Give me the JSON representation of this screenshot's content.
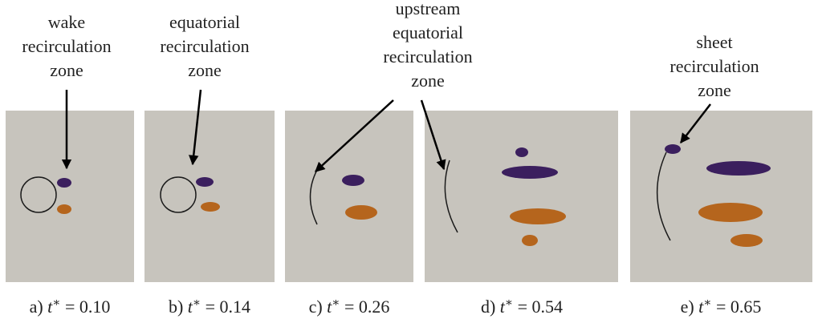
{
  "annotations": [
    {
      "lines": [
        "wake",
        "recirculation",
        "zone"
      ]
    },
    {
      "lines": [
        "equatorial",
        "recirculation",
        "zone"
      ]
    },
    {
      "lines": [
        "upstream",
        "equatorial",
        "recirculation",
        "zone"
      ]
    },
    {
      "lines": [
        "sheet",
        "recirculation",
        "zone"
      ]
    }
  ],
  "captions": [
    {
      "label": "a)",
      "var": "t",
      "sup": "∗",
      "rel": "=",
      "value": "0.10"
    },
    {
      "label": "b)",
      "var": "t",
      "sup": "∗",
      "rel": "=",
      "value": "0.14"
    },
    {
      "label": "c)",
      "var": "t",
      "sup": "∗",
      "rel": "=",
      "value": "0.26"
    },
    {
      "label": "d)",
      "var": "t",
      "sup": "∗",
      "rel": "=",
      "value": "0.54"
    },
    {
      "label": "e)",
      "var": "t",
      "sup": "∗",
      "rel": "=",
      "value": "0.65"
    }
  ]
}
